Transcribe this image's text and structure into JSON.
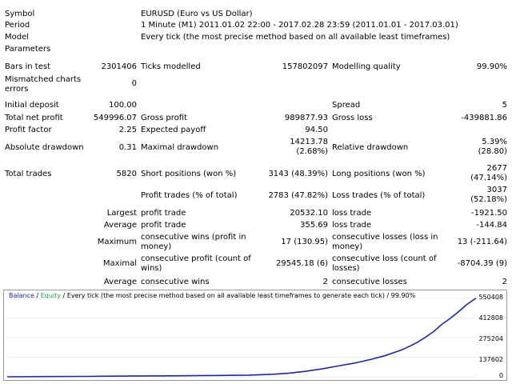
{
  "report": {
    "symbol_label": "Symbol",
    "symbol_value": "EURUSD (Euro vs US Dollar)",
    "period_label": "Period",
    "period_value": "1 Minute (M1) 2011.01.02 22:00 - 2017.02.28 23:59 (2011.01.01 - 2017.03.01)",
    "model_label": "Model",
    "model_value": "Every tick (the most precise method based on all available least timeframes)",
    "parameters_label": "Parameters",
    "bars_label": "Bars in test",
    "bars_value": "2301406",
    "ticks_label": "Ticks modelled",
    "ticks_value": "157802097",
    "quality_label": "Modelling quality",
    "quality_value": "99.90%",
    "mismatched_label": "Mismatched charts errors",
    "mismatched_value": "0",
    "initial_deposit_label": "Initial deposit",
    "initial_deposit_value": "100.00",
    "spread_label": "Spread",
    "spread_value": "5",
    "net_profit_label": "Total net profit",
    "net_profit_value": "549996.07",
    "gross_profit_label": "Gross profit",
    "gross_profit_value": "989877.93",
    "gross_loss_label": "Gross loss",
    "gross_loss_value": "-439881.86",
    "profit_factor_label": "Profit factor",
    "profit_factor_value": "2.25",
    "expected_payoff_label": "Expected payoff",
    "expected_payoff_value": "94.50",
    "abs_dd_label": "Absolute drawdown",
    "abs_dd_value": "0.31",
    "max_dd_label": "Maximal drawdown",
    "max_dd_value": "14213.78 (2.68%)",
    "rel_dd_label": "Relative drawdown",
    "rel_dd_value": "5.39% (28.80)",
    "total_trades_label": "Total trades",
    "total_trades_value": "5820",
    "short_label": "Short positions (won %)",
    "short_value": "3143 (48.39%)",
    "long_label": "Long positions (won %)",
    "long_value": "2677 (47.14%)",
    "profit_trades_label": "Profit trades (% of total)",
    "profit_trades_value": "2783 (47.82%)",
    "loss_trades_label": "Loss trades (% of total)",
    "loss_trades_value": "3037 (52.18%)",
    "largest_label": "Largest",
    "profit_trade_label": "profit trade",
    "largest_profit_value": "20532.10",
    "loss_trade_label": "loss trade",
    "largest_loss_value": "-1921.50",
    "average_label": "Average",
    "average_profit_value": "355.69",
    "average_loss_value": "-144.84",
    "maximum_label": "Maximum",
    "cons_wins_money_label": "consecutive wins (profit in money)",
    "cons_wins_money_value": "17 (130.95)",
    "cons_losses_money_label": "consecutive losses (loss in money)",
    "cons_losses_money_value": "13 (-211.64)",
    "maximal_label": "Maximal",
    "cons_profit_count_label": "consecutive profit (count of wins)",
    "cons_profit_count_value": "29545.18 (6)",
    "cons_loss_count_label": "consecutive loss (count of losses)",
    "cons_loss_count_value": "-8704.39 (9)",
    "avg_cons_label": "Average",
    "cons_wins_label": "consecutive wins",
    "cons_wins_value": "2",
    "cons_losses_label": "consecutive losses",
    "cons_losses_value": "2"
  },
  "chart": {
    "legend_balance": "Balance",
    "legend_sep1": " / ",
    "legend_equity": "Equity",
    "legend_rest": " / Every tick (the most precise method based on all available least timeframes to generate each tick) / 99.90%",
    "line_color": "#1c2a9a",
    "equity_color": "#1aa14a"
  },
  "chart_data": {
    "type": "line",
    "title": "",
    "y_ticks": [
      "550408",
      "412808",
      "275204",
      "137602",
      "0"
    ],
    "ylim": [
      0,
      550408
    ],
    "xlim": [
      0,
      5820
    ],
    "series": [
      {
        "values_x": [
          0,
          500,
          1000,
          1500,
          2000,
          2500,
          3000,
          3300,
          3500,
          3700,
          3900,
          4100,
          4300,
          4500,
          4700,
          4900,
          5000,
          5100,
          5200,
          5300,
          5400,
          5500,
          5600,
          5650,
          5700,
          5750,
          5800,
          5820
        ],
        "values": [
          100,
          1500,
          3000,
          5000,
          7000,
          9000,
          12000,
          18000,
          26000,
          38000,
          55000,
          75000,
          95000,
          120000,
          150000,
          190000,
          215000,
          245000,
          280000,
          320000,
          370000,
          410000,
          455000,
          480000,
          505000,
          525000,
          545000,
          549996
        ]
      }
    ]
  }
}
